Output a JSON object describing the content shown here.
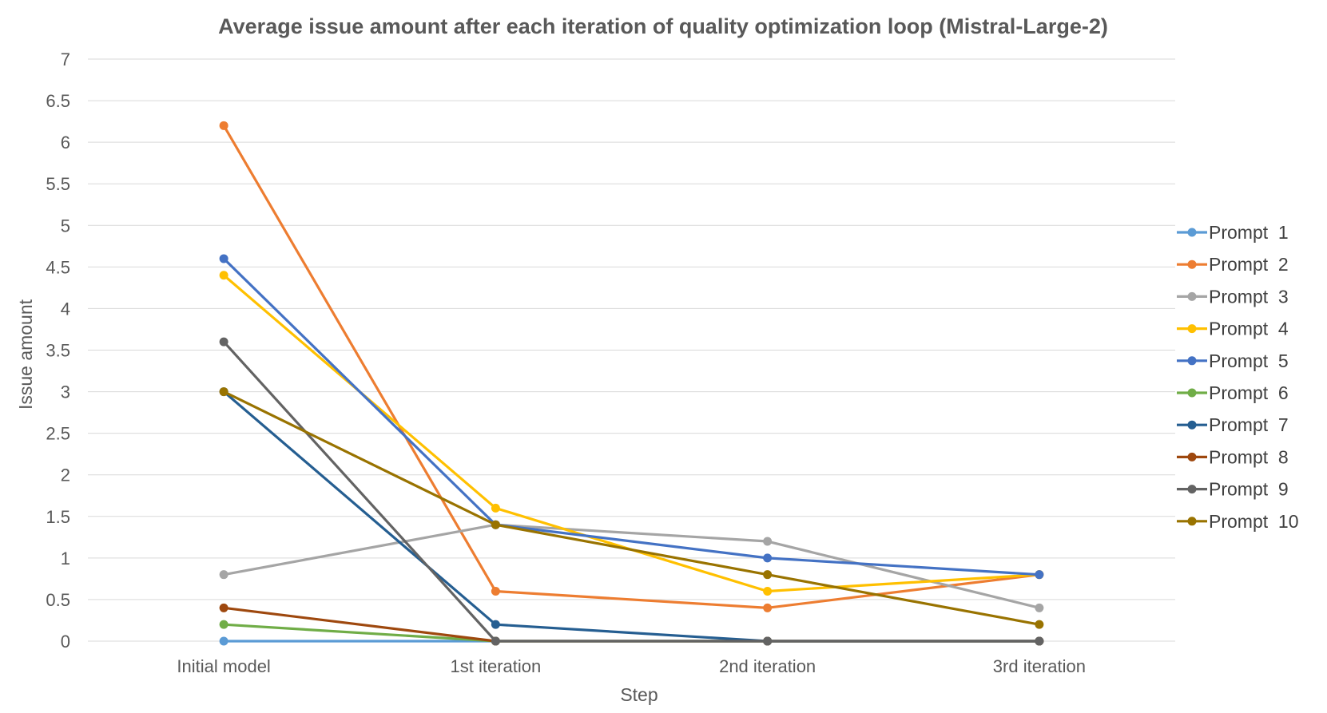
{
  "chart_data": {
    "type": "line",
    "title": "Average issue amount after each iteration of quality optimization loop (Mistral-Large-2)",
    "xlabel": "Step",
    "ylabel": "Issue  amount",
    "categories": [
      "Initial model",
      "1st iteration",
      "2nd iteration",
      "3rd iteration"
    ],
    "ylim": [
      0,
      7
    ],
    "yticks": [
      "0",
      "0.5",
      "1",
      "1.5",
      "2",
      "2.5",
      "3",
      "3.5",
      "4",
      "4.5",
      "5",
      "5.5",
      "6",
      "6.5",
      "7"
    ],
    "grid": true,
    "legend_position": "right",
    "series": [
      {
        "name": "Prompt  1",
        "color": "#5B9BD5",
        "values": [
          0,
          0,
          0,
          0
        ]
      },
      {
        "name": "Prompt  2",
        "color": "#ED7D31",
        "values": [
          6.2,
          0.6,
          0.4,
          0.8
        ]
      },
      {
        "name": "Prompt  3",
        "color": "#A5A5A5",
        "values": [
          0.8,
          1.4,
          1.2,
          0.4
        ]
      },
      {
        "name": "Prompt  4",
        "color": "#FFC000",
        "values": [
          4.4,
          1.6,
          0.6,
          0.8
        ]
      },
      {
        "name": "Prompt  5",
        "color": "#4472C4",
        "values": [
          4.6,
          1.4,
          1.0,
          0.8
        ]
      },
      {
        "name": "Prompt  6",
        "color": "#70AD47",
        "values": [
          0.2,
          0,
          0,
          0
        ]
      },
      {
        "name": "Prompt  7",
        "color": "#255E91",
        "values": [
          3.0,
          0.2,
          0,
          0
        ]
      },
      {
        "name": "Prompt  8",
        "color": "#9E480E",
        "values": [
          0.4,
          0,
          0,
          0
        ]
      },
      {
        "name": "Prompt  9",
        "color": "#636363",
        "values": [
          3.6,
          0,
          0,
          0
        ]
      },
      {
        "name": "Prompt  10",
        "color": "#997300",
        "values": [
          3.0,
          1.4,
          0.8,
          0.2
        ]
      }
    ]
  }
}
